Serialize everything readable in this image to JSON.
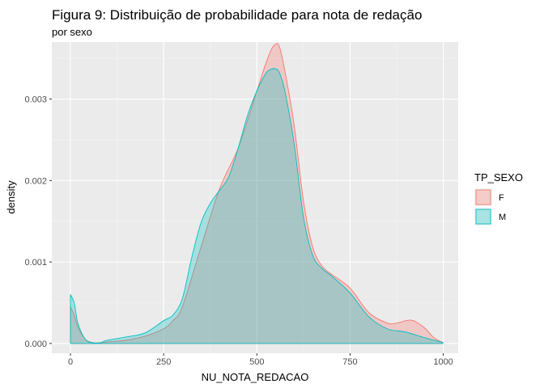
{
  "chart_data": {
    "type": "area",
    "title": "Figura 9: Distribuição de probabilidade para nota de redação",
    "subtitle": "por sexo",
    "xlabel": "NU_NOTA_REDACAO",
    "ylabel": "density",
    "xlim": [
      -50,
      1040
    ],
    "ylim": [
      -0.00012,
      0.0037
    ],
    "x_ticks": [
      0,
      250,
      500,
      750,
      1000
    ],
    "y_ticks": [
      0.0,
      0.001,
      0.002,
      0.003
    ],
    "x_tick_labels": [
      "0",
      "250",
      "500",
      "750",
      "1000"
    ],
    "y_tick_labels": [
      "0.000",
      "0.001",
      "0.002",
      "0.003"
    ],
    "grid": true,
    "legend": {
      "title": "TP_SEXO",
      "position": "right"
    },
    "series": [
      {
        "name": "F",
        "line_color": "#F8766D",
        "fill_color": "rgba(248,118,109,0.3)",
        "x": [
          0,
          10,
          20,
          40,
          60,
          80,
          100,
          150,
          200,
          250,
          275,
          300,
          350,
          400,
          450,
          500,
          525,
          540,
          550,
          560,
          575,
          600,
          625,
          650,
          675,
          700,
          750,
          800,
          850,
          875,
          900,
          920,
          950,
          975,
          1000
        ],
        "y": [
          0.00045,
          0.00035,
          0.0002,
          5e-05,
          1e-05,
          1e-05,
          2e-05,
          4e-05,
          9e-05,
          0.00018,
          0.00028,
          0.00045,
          0.00118,
          0.0019,
          0.0024,
          0.0031,
          0.00345,
          0.00362,
          0.00367,
          0.00365,
          0.00335,
          0.00268,
          0.00175,
          0.00118,
          0.00095,
          0.00085,
          0.00068,
          0.00038,
          0.00025,
          0.00025,
          0.00028,
          0.00028,
          0.00019,
          7e-05,
          1e-05
        ]
      },
      {
        "name": "M",
        "line_color": "#00BFC4",
        "fill_color": "rgba(0,191,196,0.3)",
        "x": [
          0,
          10,
          20,
          40,
          60,
          80,
          100,
          150,
          200,
          250,
          275,
          300,
          325,
          350,
          375,
          400,
          425,
          450,
          475,
          500,
          525,
          540,
          550,
          560,
          575,
          600,
          625,
          650,
          675,
          700,
          750,
          800,
          850,
          900,
          950,
          1000
        ],
        "y": [
          0.0006,
          0.0005,
          0.00025,
          5e-05,
          1e-05,
          1e-05,
          4e-05,
          8e-05,
          0.00013,
          0.00028,
          0.00035,
          0.00055,
          0.00105,
          0.00148,
          0.00172,
          0.00188,
          0.00205,
          0.0024,
          0.0028,
          0.0031,
          0.00332,
          0.00337,
          0.00337,
          0.00333,
          0.0031,
          0.00245,
          0.00155,
          0.00108,
          0.00092,
          0.00083,
          0.00062,
          0.00033,
          0.00018,
          0.00014,
          7e-05,
          1e-05
        ]
      }
    ]
  }
}
